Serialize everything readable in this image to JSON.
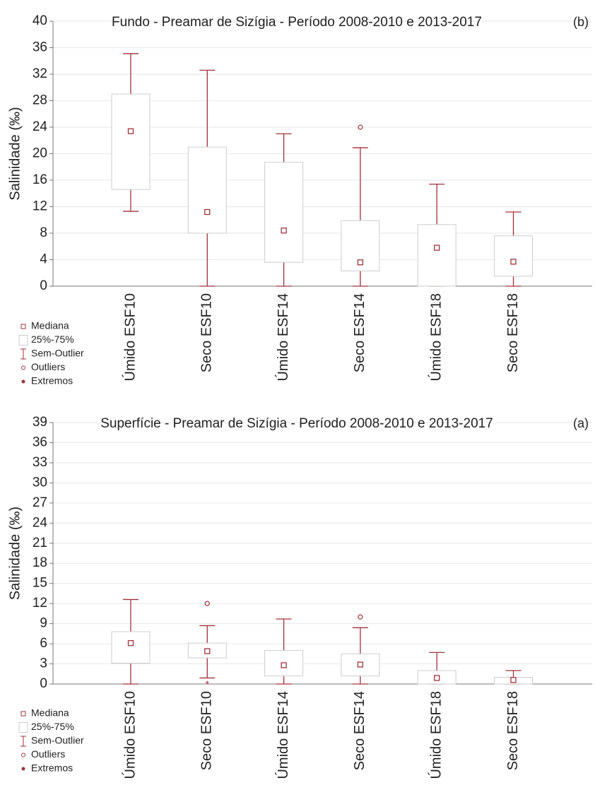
{
  "chart_data": [
    {
      "type": "box",
      "title": "Fundo - Preamar de Sizígia - Período 2008-2010 e 2013-2017",
      "panel_label": "(b)",
      "ylabel": "Salinidade (‰)",
      "color": "#a0323a",
      "grid": true,
      "ylim": [
        0,
        40
      ],
      "yticks": [
        0,
        4,
        8,
        12,
        16,
        20,
        24,
        28,
        32,
        36,
        40
      ],
      "categories": [
        "Úmido ESF10",
        "Seco ESF10",
        "Úmido ESF14",
        "Seco ESF14",
        "Úmido ESF18",
        "Seco ESF18"
      ],
      "boxes": [
        {
          "min": 11.3,
          "q1": 14.6,
          "median": 23.4,
          "q3": 29,
          "max": 35.1,
          "outliers": [],
          "extremes": []
        },
        {
          "min": 0,
          "q1": 8,
          "median": 11.2,
          "q3": 21,
          "max": 32.6,
          "outliers": [],
          "extremes": []
        },
        {
          "min": 0,
          "q1": 3.6,
          "median": 8.4,
          "q3": 18.7,
          "max": 23,
          "outliers": [],
          "extremes": []
        },
        {
          "min": 0,
          "q1": 2.3,
          "median": 3.6,
          "q3": 9.9,
          "max": 20.9,
          "outliers": [
            24
          ],
          "extremes": []
        },
        {
          "min": 0,
          "q1": 0,
          "median": 5.8,
          "q3": 9.3,
          "max": 15.4,
          "outliers": [],
          "extremes": []
        },
        {
          "min": 0,
          "q1": 1.5,
          "median": 3.7,
          "q3": 7.6,
          "max": 11.2,
          "outliers": [],
          "extremes": []
        }
      ],
      "legend": [
        "Mediana",
        "25%-75%",
        "Sem-Outlier",
        "Outliers",
        "Extremos"
      ]
    },
    {
      "type": "box",
      "title": "Superfície - Preamar de Sizígia - Período 2008-2010 e 2013-2017",
      "panel_label": "(a)",
      "ylabel": "Salinidade (‰)",
      "color": "#a0323a",
      "grid": true,
      "ylim": [
        0,
        39
      ],
      "yticks": [
        0,
        3,
        6,
        9,
        12,
        15,
        18,
        21,
        24,
        27,
        30,
        33,
        36,
        39
      ],
      "categories": [
        "Úmido ESF10",
        "Seco ESF10",
        "Úmido ESF14",
        "Seco ESF14",
        "Úmido ESF18",
        "Seco ESF18"
      ],
      "boxes": [
        {
          "min": 0,
          "q1": 3.1,
          "median": 6.1,
          "q3": 7.8,
          "max": 12.6,
          "outliers": [],
          "extremes": []
        },
        {
          "min": 0.9,
          "q1": 3.9,
          "median": 4.9,
          "q3": 6.1,
          "max": 8.7,
          "outliers": [
            12
          ],
          "extremes": [
            0.2
          ]
        },
        {
          "min": 0,
          "q1": 1.2,
          "median": 2.8,
          "q3": 5,
          "max": 9.7,
          "outliers": [],
          "extremes": []
        },
        {
          "min": 0,
          "q1": 1.2,
          "median": 2.9,
          "q3": 4.5,
          "max": 8.4,
          "outliers": [
            10
          ],
          "extremes": []
        },
        {
          "min": 0,
          "q1": 0,
          "median": 0.9,
          "q3": 2,
          "max": 4.7,
          "outliers": [],
          "extremes": []
        },
        {
          "min": 0,
          "q1": 0,
          "median": 0.6,
          "q3": 1,
          "max": 2,
          "outliers": [],
          "extremes": []
        }
      ],
      "legend": [
        "Mediana",
        "25%-75%",
        "Sem-Outlier",
        "Outliers",
        "Extremos"
      ]
    }
  ]
}
